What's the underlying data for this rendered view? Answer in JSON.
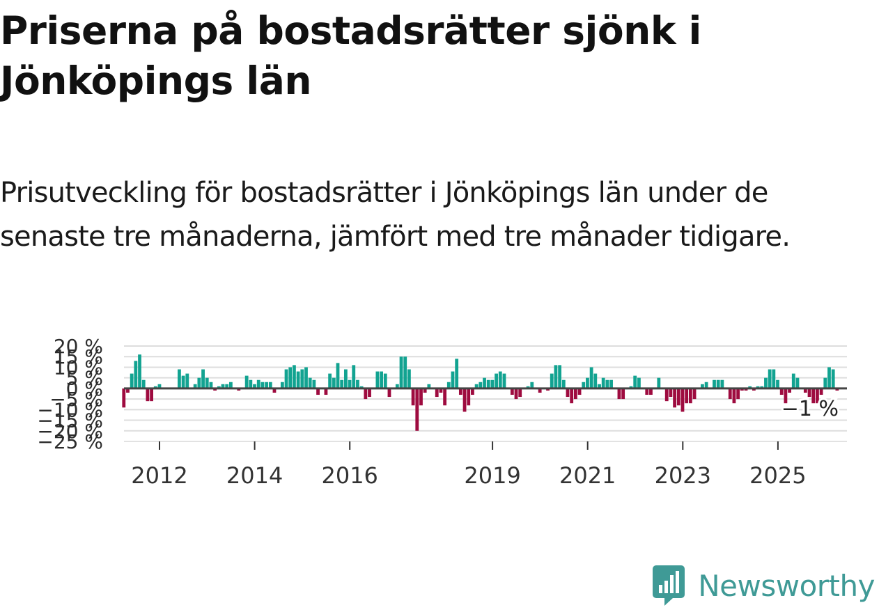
{
  "title": "Priserna på bostadsrätter sjönk i Jönköpings län",
  "subtitle": "Prisutveckling för bostadsrätter i Jönköpings län under de senaste tre månaderna, jämfört med tre månader tidigare.",
  "brand": {
    "name": "Newsworthy",
    "icon": "newsworthy-logo-icon",
    "color": "#3f9a96"
  },
  "chart_data": {
    "type": "bar",
    "title": "Priserna på bostadsrätter sjönk i Jönköpings län",
    "xlabel": "",
    "ylabel": "",
    "unit": "%",
    "ylim": [
      -25,
      20
    ],
    "y_ticks": [
      20,
      15,
      10,
      5,
      0,
      -5,
      -10,
      -15,
      -20,
      -25
    ],
    "y_tick_labels": [
      "20 %",
      "15 %",
      "10 %",
      "5 %",
      "0 %",
      "−5 %",
      "−10 %",
      "−15 %",
      "−20 %",
      "−25 %"
    ],
    "x_ticks": [
      2012,
      2014,
      2016,
      2019,
      2021,
      2023,
      2025
    ],
    "x_tick_labels": [
      "2012",
      "2014",
      "2016",
      "2019",
      "2021",
      "2023",
      "2025"
    ],
    "x_start": 2011.25,
    "x_step": 0.0833,
    "colors": {
      "positive": "#12a391",
      "negative": "#9e0b3f",
      "zero_line": "#444444",
      "grid": "#dddddd"
    },
    "annotation": {
      "text": "−1 %",
      "value": -1
    },
    "values": [
      -9,
      -2,
      7,
      13,
      16,
      4,
      -6,
      -6,
      1,
      2,
      0,
      0,
      0,
      0,
      9,
      6,
      7,
      0,
      2,
      5,
      9,
      5,
      3,
      -1,
      1,
      2,
      2,
      3,
      0,
      -1,
      0,
      6,
      4,
      2,
      4,
      3,
      3,
      3,
      -2,
      0,
      3,
      9,
      10,
      11,
      8,
      9,
      10,
      5,
      4,
      -3,
      0,
      -3,
      7,
      5,
      12,
      4,
      9,
      4,
      11,
      4,
      1,
      -5,
      -4,
      0,
      8,
      8,
      7,
      -4,
      0,
      2,
      15,
      15,
      9,
      -8,
      -20,
      -8,
      -2,
      2,
      0,
      -4,
      -2,
      -8,
      3,
      8,
      14,
      -3,
      -11,
      -8,
      -3,
      2,
      3,
      5,
      4,
      4,
      7,
      8,
      7,
      0,
      -3,
      -5,
      -4,
      0,
      1,
      3,
      0,
      -2,
      0,
      -1,
      7,
      11,
      11,
      4,
      -4,
      -7,
      -5,
      -3,
      3,
      5,
      10,
      7,
      2,
      5,
      4,
      4,
      0,
      -5,
      -5,
      0,
      1,
      6,
      5,
      0,
      -3,
      -3,
      0,
      5,
      0,
      -6,
      -4,
      -9,
      -8,
      -11,
      -7,
      -7,
      -5,
      0,
      2,
      3,
      0,
      4,
      4,
      4,
      0,
      -5,
      -7,
      -5,
      -1,
      -1,
      1,
      -1,
      1,
      1,
      5,
      9,
      9,
      4,
      -3,
      -7,
      -2,
      7,
      5,
      0,
      -2,
      -4,
      -7,
      -7,
      -3,
      5,
      10,
      9,
      -1
    ]
  }
}
